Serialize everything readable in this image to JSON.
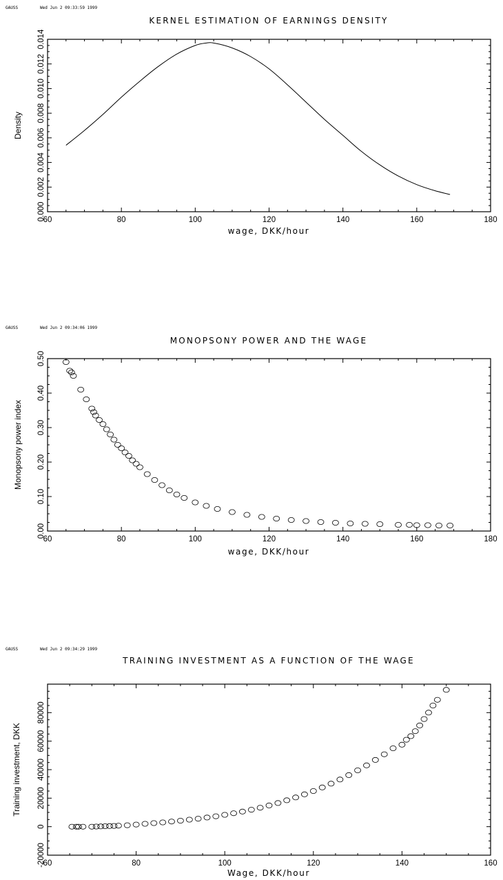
{
  "stamps": [
    {
      "app": "GAUSS",
      "date": "Wed Jun  2 09:33:59 1999"
    },
    {
      "app": "GAUSS",
      "date": "Wed Jun  2 09:34:06 1999"
    },
    {
      "app": "GAUSS",
      "date": "Wed Jun  2 09:34:29 1999"
    }
  ],
  "chart_data": [
    {
      "type": "line",
      "title": "KERNEL ESTIMATION OF EARNINGS DENSITY",
      "xlabel": "wage, DKK/hour",
      "ylabel": "Density",
      "xlim": [
        60,
        180
      ],
      "ylim": [
        0,
        0.014
      ],
      "xticks": [
        "60",
        "80",
        "100",
        "120",
        "140",
        "160",
        "180"
      ],
      "yticks": [
        "0.000",
        "0.002",
        "0.004",
        "0.006",
        "0.008",
        "0.010",
        "0.012",
        "0.014"
      ],
      "grid": false,
      "series": [
        {
          "x": [
            65,
            70,
            75,
            80,
            85,
            90,
            95,
            100,
            103,
            105,
            110,
            115,
            120,
            125,
            130,
            135,
            140,
            145,
            150,
            155,
            160,
            165,
            169
          ],
          "values": [
            0.0054,
            0.0066,
            0.0079,
            0.0093,
            0.0106,
            0.0118,
            0.0128,
            0.0135,
            0.0137,
            0.0137,
            0.0133,
            0.0126,
            0.0116,
            0.0103,
            0.0089,
            0.0075,
            0.0062,
            0.0049,
            0.0038,
            0.0029,
            0.0022,
            0.0017,
            0.0014
          ]
        }
      ]
    },
    {
      "type": "scatter",
      "title": "MONOPSONY POWER AND THE WAGE",
      "xlabel": "wage, DKK/hour",
      "ylabel": "Monopsony power index",
      "xlim": [
        60,
        180
      ],
      "ylim": [
        0,
        0.5
      ],
      "xticks": [
        "60",
        "80",
        "100",
        "120",
        "140",
        "160",
        "180"
      ],
      "yticks": [
        "0.00",
        "0.10",
        "0.20",
        "0.30",
        "0.40",
        "0.50"
      ],
      "grid": false,
      "series": [
        {
          "x": [
            65,
            66,
            66.5,
            67,
            69,
            70.5,
            72,
            72.5,
            73,
            74,
            75,
            76,
            77,
            78,
            79,
            80,
            81,
            82,
            83,
            84,
            85,
            87,
            89,
            91,
            93,
            95,
            97,
            100,
            103,
            106,
            110,
            114,
            118,
            122,
            126,
            130,
            134,
            138,
            142,
            146,
            150,
            155,
            158,
            160,
            163,
            166,
            169
          ],
          "values": [
            0.49,
            0.465,
            0.46,
            0.45,
            0.41,
            0.382,
            0.355,
            0.345,
            0.335,
            0.322,
            0.31,
            0.295,
            0.28,
            0.265,
            0.25,
            0.24,
            0.228,
            0.218,
            0.205,
            0.195,
            0.185,
            0.165,
            0.148,
            0.133,
            0.118,
            0.106,
            0.096,
            0.083,
            0.073,
            0.064,
            0.055,
            0.047,
            0.041,
            0.036,
            0.032,
            0.029,
            0.026,
            0.024,
            0.022,
            0.021,
            0.02,
            0.018,
            0.018,
            0.017,
            0.017,
            0.016,
            0.016
          ]
        }
      ]
    },
    {
      "type": "scatter",
      "title": "TRAINING INVESTMENT AS A FUNCTION OF THE WAGE",
      "xlabel": "Wage, DKK/hour",
      "ylabel": "Training investment, DKK",
      "xlim": [
        60,
        160
      ],
      "ylim": [
        -20000,
        100000
      ],
      "xticks": [
        "60",
        "80",
        "100",
        "120",
        "140",
        "160"
      ],
      "yticks": [
        "-20000",
        "0",
        "20000",
        "40000",
        "60000",
        "80000"
      ],
      "grid": false,
      "series": [
        {
          "x": [
            65.5,
            66.5,
            67,
            68,
            70,
            71,
            72,
            73,
            74,
            75,
            76,
            78,
            80,
            82,
            84,
            86,
            88,
            90,
            92,
            94,
            96,
            98,
            100,
            102,
            104,
            106,
            108,
            110,
            112,
            114,
            116,
            118,
            120,
            122,
            124,
            126,
            128,
            130,
            132,
            134,
            136,
            138,
            140,
            141,
            142,
            143,
            144,
            145,
            146,
            147,
            148,
            150
          ],
          "values": [
            0,
            0,
            0,
            0,
            0,
            100,
            200,
            300,
            400,
            500,
            700,
            1000,
            1500,
            2000,
            2500,
            3000,
            3600,
            4200,
            4900,
            5600,
            6400,
            7300,
            8300,
            9400,
            10600,
            11900,
            13300,
            14900,
            16600,
            18500,
            20500,
            22700,
            25000,
            27500,
            30200,
            33100,
            36200,
            39500,
            43000,
            46800,
            50800,
            55000,
            57500,
            61000,
            63500,
            67000,
            71000,
            75500,
            80000,
            85000,
            89000,
            96000
          ]
        }
      ]
    }
  ]
}
